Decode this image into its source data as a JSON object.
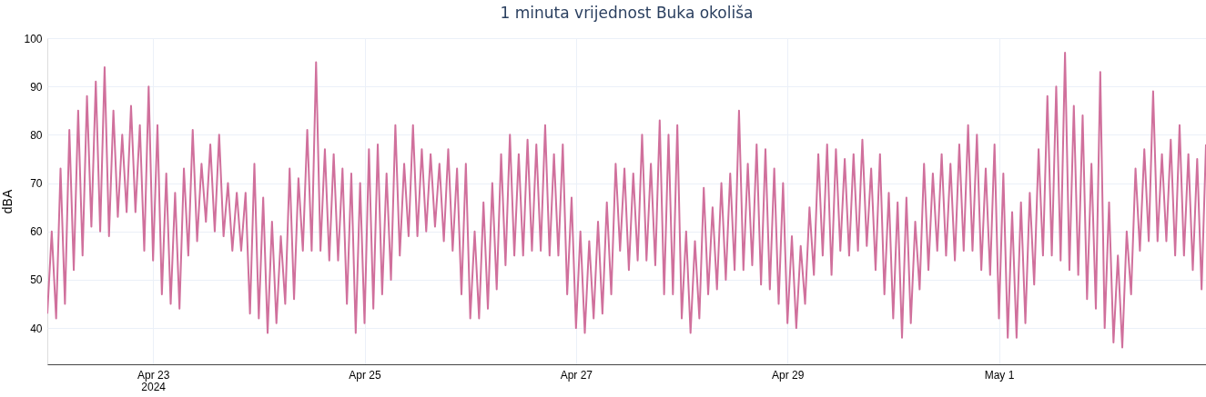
{
  "chart_data": {
    "type": "line",
    "title": "1 minuta vrijednost Buka okoliša",
    "ylabel": "dBA",
    "color": "#d0709c",
    "grid": true,
    "xlim": [
      "2024-04-22T00:00",
      "2024-05-02T23:00"
    ],
    "xticks": [
      {
        "value": "2024-04-23T00:00",
        "label": "Apr 23\n2024"
      },
      {
        "value": "2024-04-25T00:00",
        "label": "Apr 25"
      },
      {
        "value": "2024-04-27T00:00",
        "label": "Apr 27"
      },
      {
        "value": "2024-04-29T00:00",
        "label": "Apr 29"
      },
      {
        "value": "2024-05-01T00:00",
        "label": "May 1"
      }
    ],
    "ylim": [
      32.5,
      100
    ],
    "yticks": [
      40,
      50,
      60,
      70,
      80,
      90,
      100
    ],
    "x": [
      "2024-04-22T00:00",
      "2024-04-22T01:00",
      "2024-04-22T02:00",
      "2024-04-22T03:00",
      "2024-04-22T04:00",
      "2024-04-22T05:00",
      "2024-04-22T06:00",
      "2024-04-22T07:00",
      "2024-04-22T08:00",
      "2024-04-22T09:00",
      "2024-04-22T10:00",
      "2024-04-22T11:00",
      "2024-04-22T12:00",
      "2024-04-22T13:00",
      "2024-04-22T14:00",
      "2024-04-22T15:00",
      "2024-04-22T16:00",
      "2024-04-22T17:00",
      "2024-04-22T18:00",
      "2024-04-22T19:00",
      "2024-04-22T20:00",
      "2024-04-22T21:00",
      "2024-04-22T22:00",
      "2024-04-22T23:00",
      "2024-04-23T00:00",
      "2024-04-23T01:00",
      "2024-04-23T02:00",
      "2024-04-23T03:00",
      "2024-04-23T04:00",
      "2024-04-23T05:00",
      "2024-04-23T06:00",
      "2024-04-23T07:00",
      "2024-04-23T08:00",
      "2024-04-23T09:00",
      "2024-04-23T10:00",
      "2024-04-23T11:00",
      "2024-04-23T12:00",
      "2024-04-23T13:00",
      "2024-04-23T14:00",
      "2024-04-23T15:00",
      "2024-04-23T16:00",
      "2024-04-23T17:00",
      "2024-04-23T18:00",
      "2024-04-23T19:00",
      "2024-04-23T20:00",
      "2024-04-23T21:00",
      "2024-04-23T22:00",
      "2024-04-23T23:00",
      "2024-04-24T00:00",
      "2024-04-24T01:00",
      "2024-04-24T02:00",
      "2024-04-24T03:00",
      "2024-04-24T04:00",
      "2024-04-24T05:00",
      "2024-04-24T06:00",
      "2024-04-24T07:00",
      "2024-04-24T08:00",
      "2024-04-24T09:00",
      "2024-04-24T10:00",
      "2024-04-24T11:00",
      "2024-04-24T12:00",
      "2024-04-24T13:00",
      "2024-04-24T14:00",
      "2024-04-24T15:00",
      "2024-04-24T16:00",
      "2024-04-24T17:00",
      "2024-04-24T18:00",
      "2024-04-24T19:00",
      "2024-04-24T20:00",
      "2024-04-24T21:00",
      "2024-04-24T22:00",
      "2024-04-24T23:00",
      "2024-04-25T00:00",
      "2024-04-25T01:00",
      "2024-04-25T02:00",
      "2024-04-25T03:00",
      "2024-04-25T04:00",
      "2024-04-25T05:00",
      "2024-04-25T06:00",
      "2024-04-25T07:00",
      "2024-04-25T08:00",
      "2024-04-25T09:00",
      "2024-04-25T10:00",
      "2024-04-25T11:00",
      "2024-04-25T12:00",
      "2024-04-25T13:00",
      "2024-04-25T14:00",
      "2024-04-25T15:00",
      "2024-04-25T16:00",
      "2024-04-25T17:00",
      "2024-04-25T18:00",
      "2024-04-25T19:00",
      "2024-04-25T20:00",
      "2024-04-25T21:00",
      "2024-04-25T22:00",
      "2024-04-25T23:00",
      "2024-04-26T00:00",
      "2024-04-26T01:00",
      "2024-04-26T02:00",
      "2024-04-26T03:00",
      "2024-04-26T04:00",
      "2024-04-26T05:00",
      "2024-04-26T06:00",
      "2024-04-26T07:00",
      "2024-04-26T08:00",
      "2024-04-26T09:00",
      "2024-04-26T10:00",
      "2024-04-26T11:00",
      "2024-04-26T12:00",
      "2024-04-26T13:00",
      "2024-04-26T14:00",
      "2024-04-26T15:00",
      "2024-04-26T16:00",
      "2024-04-26T17:00",
      "2024-04-26T18:00",
      "2024-04-26T19:00",
      "2024-04-26T20:00",
      "2024-04-26T21:00",
      "2024-04-26T22:00",
      "2024-04-26T23:00",
      "2024-04-27T00:00",
      "2024-04-27T01:00",
      "2024-04-27T02:00",
      "2024-04-27T03:00",
      "2024-04-27T04:00",
      "2024-04-27T05:00",
      "2024-04-27T06:00",
      "2024-04-27T07:00",
      "2024-04-27T08:00",
      "2024-04-27T09:00",
      "2024-04-27T10:00",
      "2024-04-27T11:00",
      "2024-04-27T12:00",
      "2024-04-27T13:00",
      "2024-04-27T14:00",
      "2024-04-27T15:00",
      "2024-04-27T16:00",
      "2024-04-27T17:00",
      "2024-04-27T18:00",
      "2024-04-27T19:00",
      "2024-04-27T20:00",
      "2024-04-27T21:00",
      "2024-04-27T22:00",
      "2024-04-27T23:00",
      "2024-04-28T00:00",
      "2024-04-28T01:00",
      "2024-04-28T02:00",
      "2024-04-28T03:00",
      "2024-04-28T04:00",
      "2024-04-28T05:00",
      "2024-04-28T06:00",
      "2024-04-28T07:00",
      "2024-04-28T08:00",
      "2024-04-28T09:00",
      "2024-04-28T10:00",
      "2024-04-28T11:00",
      "2024-04-28T12:00",
      "2024-04-28T13:00",
      "2024-04-28T14:00",
      "2024-04-28T15:00",
      "2024-04-28T16:00",
      "2024-04-28T17:00",
      "2024-04-28T18:00",
      "2024-04-28T19:00",
      "2024-04-28T20:00",
      "2024-04-28T21:00",
      "2024-04-28T22:00",
      "2024-04-28T23:00",
      "2024-04-29T00:00",
      "2024-04-29T01:00",
      "2024-04-29T02:00",
      "2024-04-29T03:00",
      "2024-04-29T04:00",
      "2024-04-29T05:00",
      "2024-04-29T06:00",
      "2024-04-29T07:00",
      "2024-04-29T08:00",
      "2024-04-29T09:00",
      "2024-04-29T10:00",
      "2024-04-29T11:00",
      "2024-04-29T12:00",
      "2024-04-29T13:00",
      "2024-04-29T14:00",
      "2024-04-29T15:00",
      "2024-04-29T16:00",
      "2024-04-29T17:00",
      "2024-04-29T18:00",
      "2024-04-29T19:00",
      "2024-04-29T20:00",
      "2024-04-29T21:00",
      "2024-04-29T22:00",
      "2024-04-29T23:00",
      "2024-04-30T00:00",
      "2024-04-30T01:00",
      "2024-04-30T02:00",
      "2024-04-30T03:00",
      "2024-04-30T04:00",
      "2024-04-30T05:00",
      "2024-04-30T06:00",
      "2024-04-30T07:00",
      "2024-04-30T08:00",
      "2024-04-30T09:00",
      "2024-04-30T10:00",
      "2024-04-30T11:00",
      "2024-04-30T12:00",
      "2024-04-30T13:00",
      "2024-04-30T14:00",
      "2024-04-30T15:00",
      "2024-04-30T16:00",
      "2024-04-30T17:00",
      "2024-04-30T18:00",
      "2024-04-30T19:00",
      "2024-04-30T20:00",
      "2024-04-30T21:00",
      "2024-04-30T22:00",
      "2024-04-30T23:00",
      "2024-05-01T00:00",
      "2024-05-01T01:00",
      "2024-05-01T02:00",
      "2024-05-01T03:00",
      "2024-05-01T04:00",
      "2024-05-01T05:00",
      "2024-05-01T06:00",
      "2024-05-01T07:00",
      "2024-05-01T08:00",
      "2024-05-01T09:00",
      "2024-05-01T10:00",
      "2024-05-01T11:00",
      "2024-05-01T12:00",
      "2024-05-01T13:00",
      "2024-05-01T14:00",
      "2024-05-01T15:00",
      "2024-05-01T16:00",
      "2024-05-01T17:00",
      "2024-05-01T18:00",
      "2024-05-01T19:00",
      "2024-05-01T20:00",
      "2024-05-01T21:00",
      "2024-05-01T22:00",
      "2024-05-01T23:00",
      "2024-05-02T00:00",
      "2024-05-02T01:00",
      "2024-05-02T02:00",
      "2024-05-02T03:00",
      "2024-05-02T04:00",
      "2024-05-02T05:00",
      "2024-05-02T06:00",
      "2024-05-02T07:00",
      "2024-05-02T08:00",
      "2024-05-02T09:00",
      "2024-05-02T10:00",
      "2024-05-02T11:00",
      "2024-05-02T12:00",
      "2024-05-02T13:00",
      "2024-05-02T14:00",
      "2024-05-02T15:00",
      "2024-05-02T16:00",
      "2024-05-02T17:00",
      "2024-05-02T18:00",
      "2024-05-02T19:00",
      "2024-05-02T20:00",
      "2024-05-02T21:00",
      "2024-05-02T22:00",
      "2024-05-02T23:00"
    ],
    "values": [
      43,
      60,
      42,
      73,
      45,
      81,
      52,
      85,
      55,
      88,
      61,
      91,
      60,
      94,
      59,
      85,
      63,
      80,
      64,
      86,
      64,
      82,
      56,
      90,
      54,
      82,
      47,
      72,
      45,
      68,
      44,
      73,
      55,
      81,
      58,
      74,
      62,
      78,
      60,
      80,
      59,
      70,
      56,
      68,
      56,
      68,
      43,
      74,
      42,
      67,
      39,
      62,
      41,
      59,
      45,
      73,
      46,
      71,
      56,
      81,
      56,
      95,
      56,
      77,
      54,
      76,
      54,
      73,
      45,
      72,
      39,
      70,
      41,
      77,
      44,
      78,
      47,
      72,
      50,
      82,
      55,
      74,
      59,
      82,
      59,
      77,
      60,
      76,
      61,
      74,
      58,
      77,
      56,
      73,
      47,
      74,
      42,
      60,
      42,
      66,
      44,
      70,
      48,
      76,
      53,
      80,
      55,
      76,
      55,
      79,
      56,
      78,
      56,
      82,
      55,
      76,
      55,
      78,
      47,
      67,
      40,
      60,
      39,
      58,
      42,
      62,
      43,
      66,
      47,
      74,
      56,
      73,
      52,
      72,
      54,
      80,
      54,
      74,
      53,
      83,
      47,
      80,
      47,
      82,
      42,
      60,
      39,
      58,
      42,
      69,
      47,
      65,
      48,
      70,
      50,
      72,
      52,
      85,
      52,
      74,
      53,
      78,
      49,
      77,
      48,
      73,
      45,
      70,
      41,
      59,
      40,
      57,
      45,
      65,
      51,
      76,
      55,
      78,
      51,
      77,
      56,
      75,
      55,
      76,
      56,
      79,
      57,
      73,
      52,
      76,
      47,
      68,
      42,
      66,
      38,
      67,
      41,
      62,
      48,
      74,
      52,
      72,
      56,
      76,
      55,
      74,
      54,
      78,
      56,
      82,
      56,
      80,
      52,
      73,
      51,
      78,
      42,
      72,
      38,
      64,
      38,
      66,
      41,
      68,
      49,
      77,
      55,
      88,
      55,
      90,
      54,
      97,
      52,
      86,
      51,
      84,
      46,
      74,
      44,
      93,
      40,
      66,
      37,
      55,
      36,
      60,
      47,
      73,
      56,
      77,
      58,
      89,
      58,
      76,
      58,
      79,
      55,
      82,
      55,
      76,
      52,
      75,
      48,
      78
    ]
  }
}
